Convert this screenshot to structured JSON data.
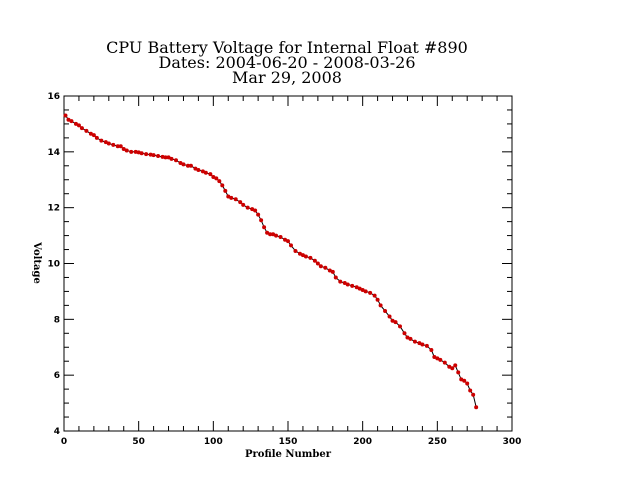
{
  "chart_data": {
    "type": "line",
    "title_lines": [
      "CPU Battery Voltage for Internal Float #890",
      "Dates:  2004-06-20 -  2008-03-26",
      "Mar 29, 2008"
    ],
    "xlabel": "Profile Number",
    "ylabel": "Voltage",
    "xlim": [
      0,
      300
    ],
    "ylim": [
      4,
      16
    ],
    "xticks": [
      0,
      50,
      100,
      150,
      200,
      250,
      300
    ],
    "yticks": [
      4,
      6,
      8,
      10,
      12,
      14,
      16
    ],
    "grid": false,
    "colors": {
      "line": "#000000",
      "marker": "#cc0000"
    },
    "series": [
      {
        "x": [
          1,
          3,
          5,
          8,
          10,
          12,
          15,
          18,
          20,
          22,
          25,
          28,
          30,
          33,
          36,
          38,
          40,
          42,
          45,
          48,
          50,
          52,
          55,
          58,
          60,
          63,
          66,
          68,
          70,
          72,
          75,
          78,
          80,
          83,
          85,
          88,
          90,
          93,
          95,
          98,
          100,
          102,
          104,
          106,
          108,
          110,
          112,
          115,
          118,
          120,
          123,
          126,
          128,
          130,
          132,
          134,
          136,
          138,
          140,
          142,
          145,
          148,
          150,
          152,
          155,
          158,
          160,
          162,
          165,
          168,
          170,
          172,
          175,
          178,
          180,
          182,
          185,
          188,
          190,
          193,
          196,
          198,
          200,
          202,
          205,
          208,
          210,
          212,
          215,
          218,
          220,
          222,
          225,
          228,
          230,
          232,
          235,
          238,
          240,
          243,
          246,
          248,
          250,
          252,
          255,
          258,
          260,
          262,
          264,
          266,
          268,
          270,
          272,
          274,
          276
        ],
        "y": [
          15.3,
          15.15,
          15.1,
          15.0,
          14.95,
          14.85,
          14.75,
          14.65,
          14.6,
          14.5,
          14.4,
          14.35,
          14.3,
          14.25,
          14.2,
          14.2,
          14.1,
          14.05,
          14.0,
          14.0,
          13.98,
          13.95,
          13.92,
          13.9,
          13.88,
          13.85,
          13.82,
          13.8,
          13.8,
          13.75,
          13.7,
          13.6,
          13.55,
          13.5,
          13.5,
          13.4,
          13.35,
          13.3,
          13.25,
          13.2,
          13.1,
          13.05,
          12.95,
          12.8,
          12.6,
          12.4,
          12.35,
          12.3,
          12.2,
          12.1,
          12.0,
          11.95,
          11.9,
          11.75,
          11.55,
          11.3,
          11.1,
          11.05,
          11.05,
          11.0,
          10.95,
          10.85,
          10.8,
          10.65,
          10.45,
          10.35,
          10.3,
          10.25,
          10.2,
          10.1,
          10.0,
          9.9,
          9.85,
          9.75,
          9.7,
          9.5,
          9.35,
          9.3,
          9.25,
          9.2,
          9.15,
          9.1,
          9.05,
          9.0,
          8.95,
          8.85,
          8.7,
          8.5,
          8.3,
          8.1,
          7.95,
          7.9,
          7.75,
          7.5,
          7.35,
          7.3,
          7.2,
          7.15,
          7.1,
          7.05,
          6.9,
          6.65,
          6.6,
          6.55,
          6.45,
          6.3,
          6.25,
          6.35,
          6.1,
          5.85,
          5.8,
          5.7,
          5.45,
          5.3,
          4.85
        ]
      }
    ]
  }
}
